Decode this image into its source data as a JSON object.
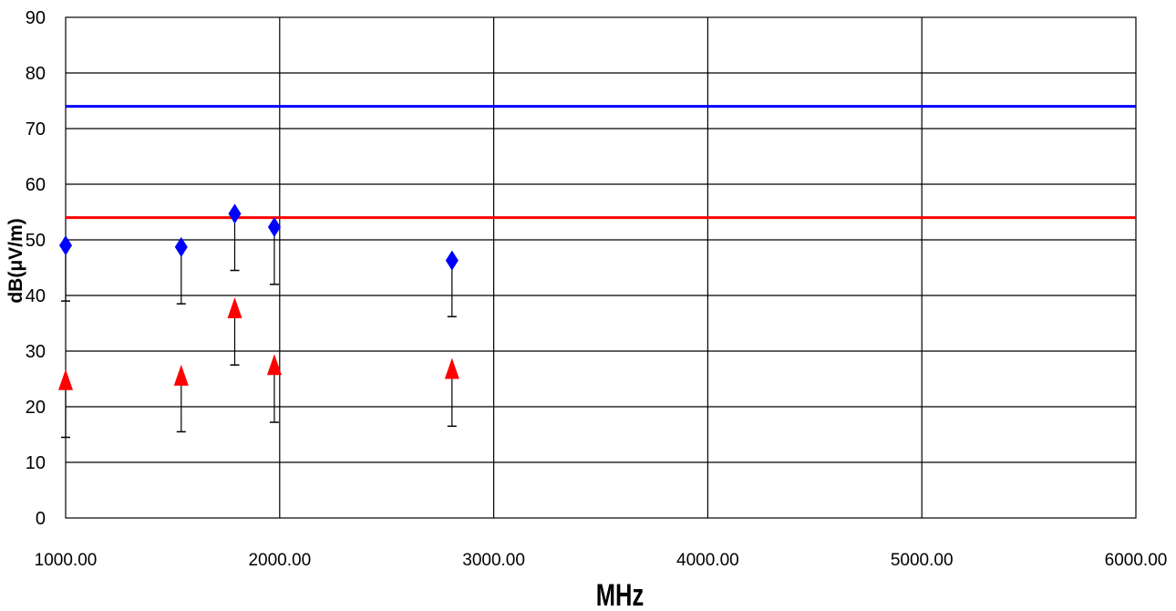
{
  "chart_data": {
    "type": "scatter",
    "title": "",
    "xlabel": "MHz",
    "ylabel": "dB(μV/m)",
    "xlim": [
      1000,
      6000
    ],
    "ylim": [
      0,
      90
    ],
    "x_ticks": [
      "1000.00",
      "2000.00",
      "3000.00",
      "4000.00",
      "5000.00",
      "6000.00"
    ],
    "y_ticks": [
      "0",
      "10",
      "20",
      "30",
      "40",
      "50",
      "60",
      "70",
      "80",
      "90"
    ],
    "grid": true,
    "legend": "none",
    "limit_lines": [
      {
        "value": 74,
        "color": "#0000ff"
      },
      {
        "value": 54,
        "color": "#ff0000"
      }
    ],
    "series": [
      {
        "marker": "diamond",
        "color": "#0000ff",
        "points": [
          {
            "x": 1000,
            "y": 49,
            "low": 39
          },
          {
            "x": 1540,
            "y": 48.7,
            "low": 38.5
          },
          {
            "x": 1790,
            "y": 54.7,
            "low": 44.5
          },
          {
            "x": 1975,
            "y": 52.3,
            "low": 42
          },
          {
            "x": 2805,
            "y": 46.3,
            "low": 36.2
          }
        ]
      },
      {
        "marker": "triangle",
        "color": "#ff0000",
        "points": [
          {
            "x": 1000,
            "y": 24.8,
            "low": 14.5
          },
          {
            "x": 1540,
            "y": 25.6,
            "low": 15.5
          },
          {
            "x": 1790,
            "y": 37.7,
            "low": 27.5
          },
          {
            "x": 1975,
            "y": 27.5,
            "low": 17.2
          },
          {
            "x": 2805,
            "y": 26.8,
            "low": 16.5
          }
        ]
      }
    ]
  }
}
